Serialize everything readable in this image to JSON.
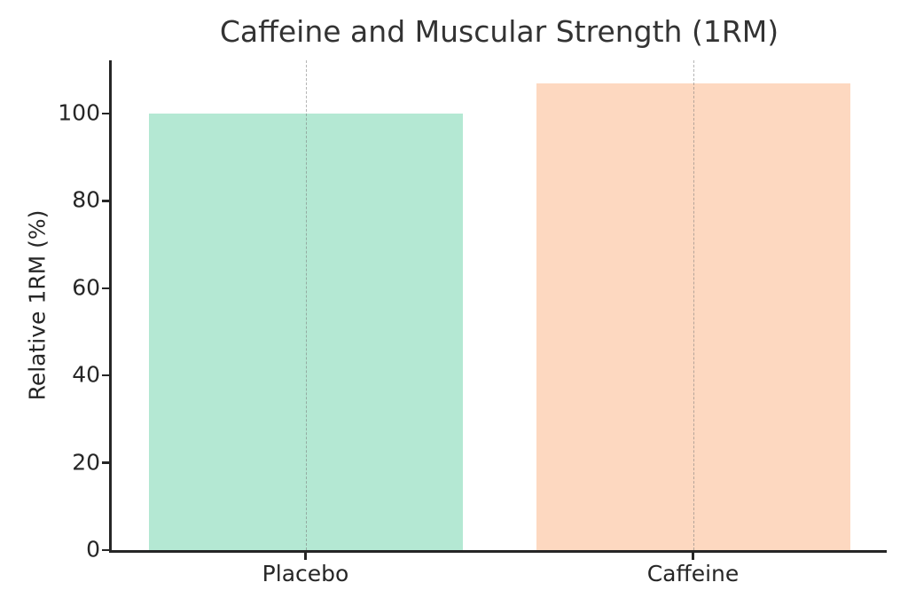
{
  "chart_data": {
    "type": "bar",
    "title": "Caffeine and Muscular Strength (1RM)",
    "xlabel": "",
    "ylabel": "Relative 1RM (%)",
    "categories": [
      "Placebo",
      "Caffeine"
    ],
    "values": [
      100,
      107
    ],
    "bar_colors": [
      "#b4e8d3",
      "#fdd8c0"
    ],
    "ylim": [
      0,
      112.2
    ],
    "yticks": [
      0,
      20,
      40,
      60,
      80,
      100
    ],
    "grid": "vertical dashed gridlines at category centers, drawn over bars",
    "legend": "none",
    "spines": "left and bottom only",
    "colors": {
      "spine": "#262626",
      "text": "#262626",
      "title": "#333333",
      "gridline": "rgba(120,120,120,0.55)",
      "background": "#ffffff"
    }
  }
}
